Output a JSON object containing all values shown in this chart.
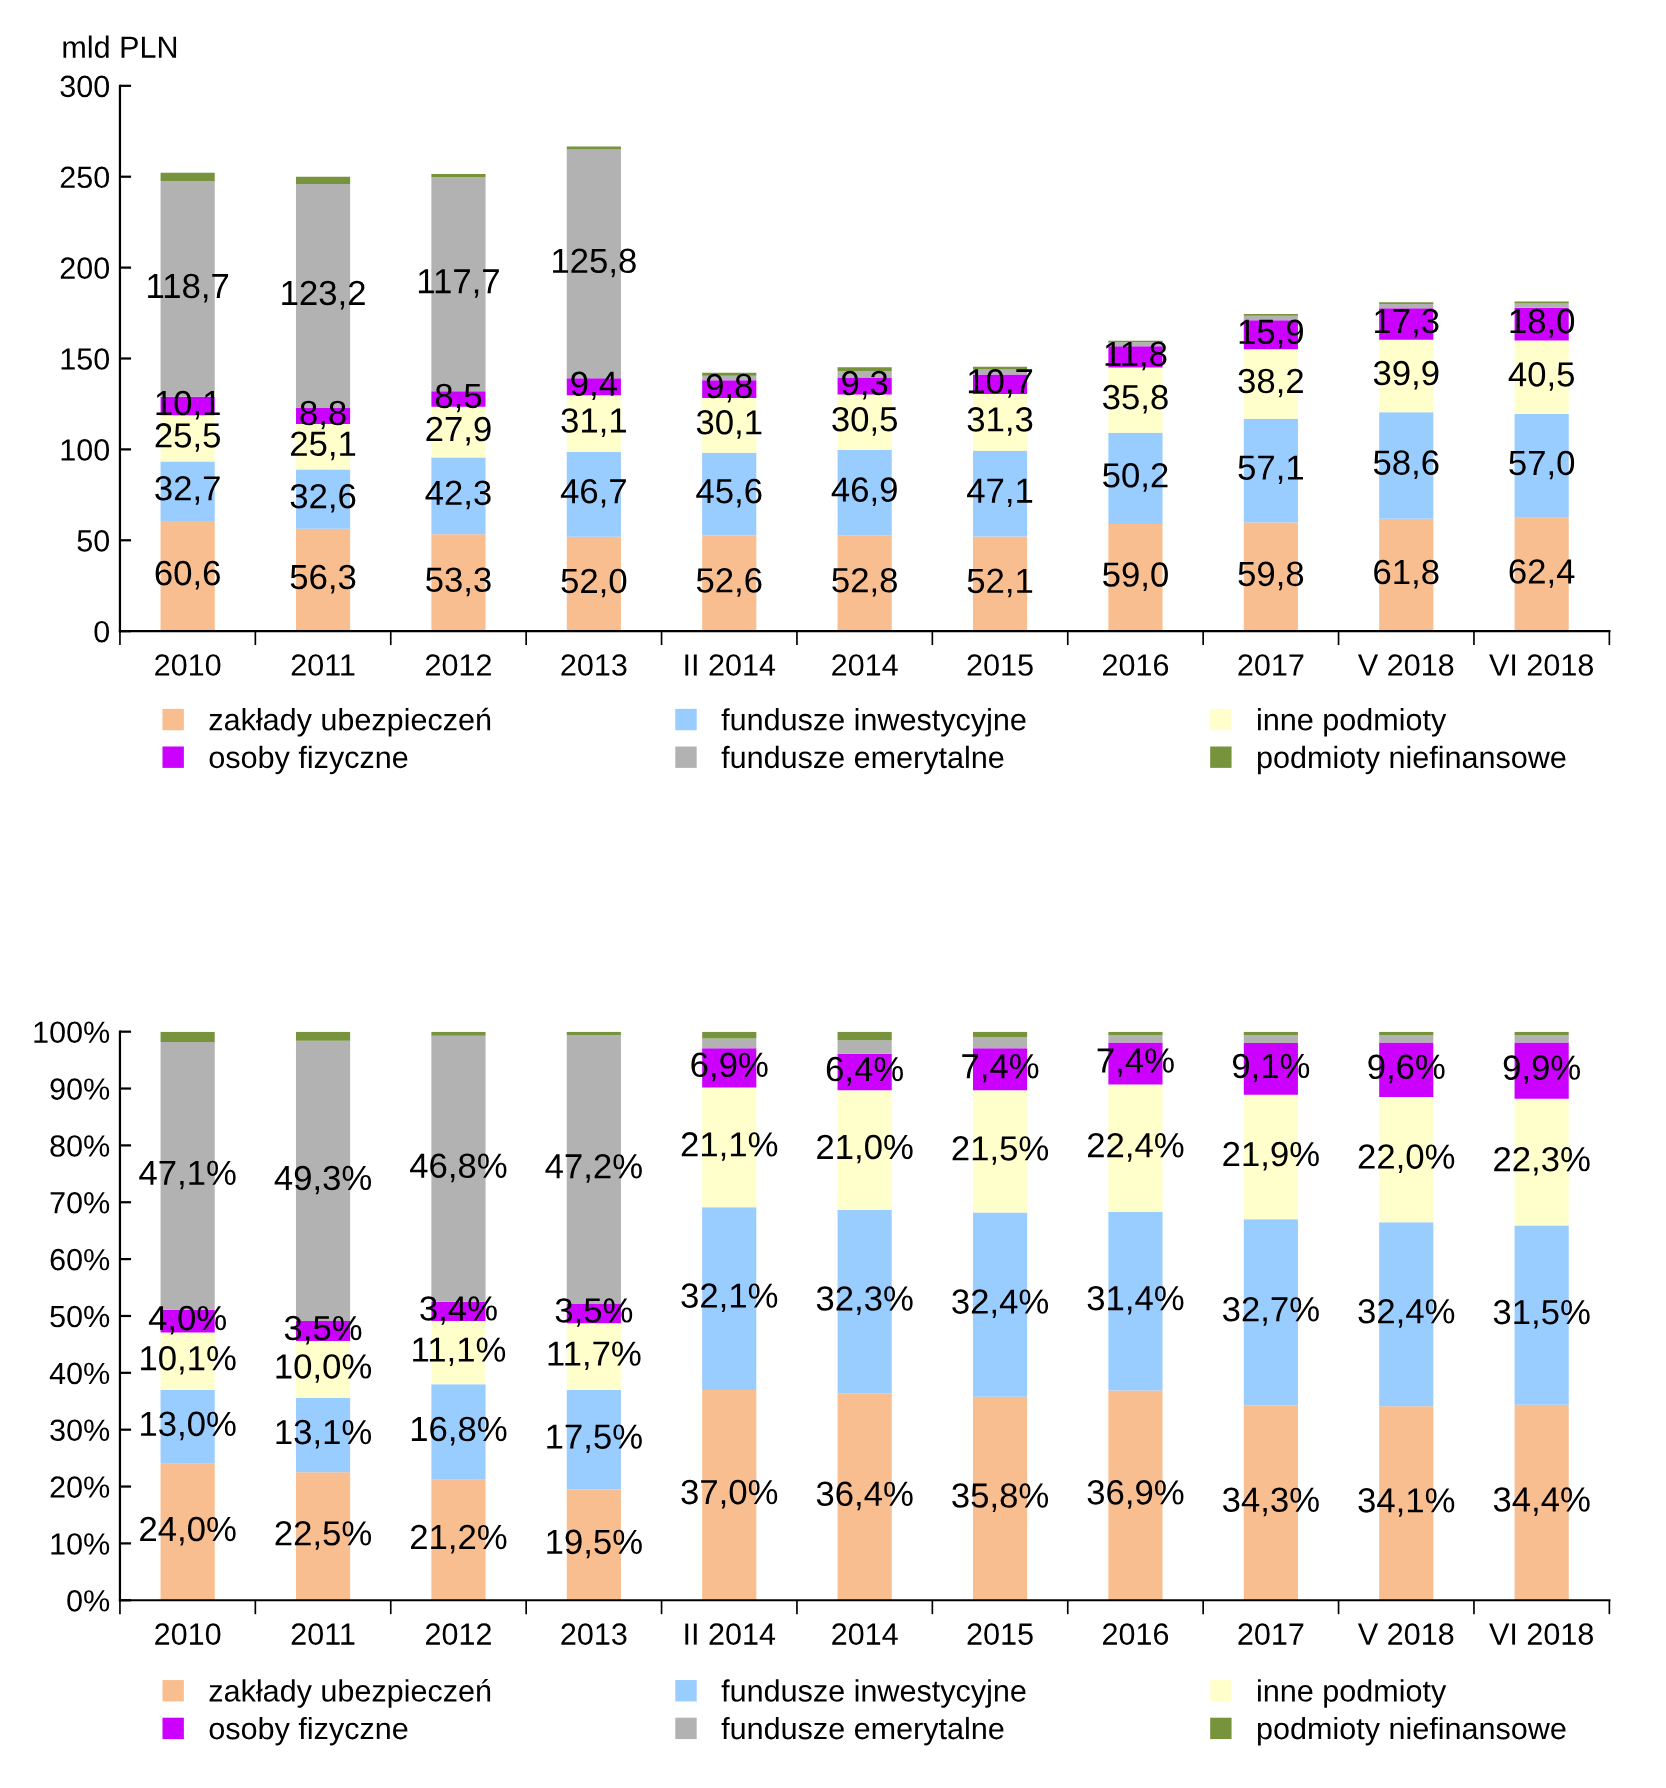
{
  "chart_data": [
    {
      "type": "bar",
      "stacked": true,
      "ylabel": "mld PLN",
      "categories": [
        "2010",
        "2011",
        "2012",
        "2013",
        "II 2014",
        "2014",
        "2015",
        "2016",
        "2017",
        "V 2018",
        "VI 2018"
      ],
      "ylim": [
        0,
        300
      ],
      "yticks": [
        0,
        50,
        100,
        150,
        200,
        250,
        300
      ],
      "legend": "bottom",
      "grid": false,
      "series": [
        {
          "name": "zakłady ubezpieczeń",
          "color": "#f9be8f",
          "values": [
            60.6,
            56.3,
            53.3,
            52.0,
            52.6,
            52.8,
            52.1,
            59.0,
            59.8,
            61.8,
            62.4
          ],
          "value_labels": [
            "60,6",
            "56,3",
            "53,3",
            "52,0",
            "52,6",
            "52,8",
            "52,1",
            "59,0",
            "59,8",
            "61,8",
            "62,4"
          ]
        },
        {
          "name": "fundusze inwestycyjne",
          "color": "#99ccff",
          "values": [
            32.7,
            32.6,
            42.3,
            46.7,
            45.6,
            46.9,
            47.1,
            50.2,
            57.1,
            58.6,
            57.0
          ],
          "value_labels": [
            "32,7",
            "32,6",
            "42,3",
            "46,7",
            "45,6",
            "46,9",
            "47,1",
            "50,2",
            "57,1",
            "58,6",
            "57,0"
          ]
        },
        {
          "name": "inne podmioty",
          "color": "#ffffcc",
          "values": [
            25.5,
            25.1,
            27.9,
            31.1,
            30.1,
            30.5,
            31.3,
            35.8,
            38.2,
            39.9,
            40.5
          ],
          "value_labels": [
            "25,5",
            "25,1",
            "27,9",
            "31,1",
            "30,1",
            "30,5",
            "31,3",
            "35,8",
            "38,2",
            "39,9",
            "40,5"
          ]
        },
        {
          "name": "osoby fizyczne",
          "color": "#cc00ff",
          "values": [
            10.1,
            8.8,
            8.5,
            9.4,
            9.8,
            9.3,
            10.7,
            11.8,
            15.9,
            17.3,
            18.0
          ],
          "value_labels": [
            "10,1",
            "8,8",
            "8,5",
            "9,4",
            "9,8",
            "9,3",
            "10,7",
            "11,8",
            "15,9",
            "17,3",
            "18,0"
          ]
        },
        {
          "name": "fundusze emerytalne",
          "color": "#b2b2b2",
          "values": [
            118.7,
            123.2,
            117.7,
            125.8,
            2.4,
            3.5,
            2.7,
            2.1,
            2.5,
            2.4,
            2.4
          ],
          "value_labels": [
            "118,7",
            "123,2",
            "117,7",
            "125,8",
            null,
            null,
            null,
            null,
            null,
            null,
            null
          ]
        },
        {
          "name": "podmioty niefinansowe",
          "color": "#77933c",
          "values": [
            4.6,
            4.0,
            1.8,
            1.6,
            1.7,
            2.2,
            1.5,
            0.9,
            1.0,
            1.0,
            1.0
          ]
        }
      ]
    },
    {
      "type": "bar",
      "stacked": true,
      "categories": [
        "2010",
        "2011",
        "2012",
        "2013",
        "II 2014",
        "2014",
        "2015",
        "2016",
        "2017",
        "V 2018",
        "VI 2018"
      ],
      "ylim": [
        0,
        100
      ],
      "yticks": [
        {
          "value": 0,
          "label": "0%"
        },
        {
          "value": 10,
          "label": "10%"
        },
        {
          "value": 20,
          "label": "20%"
        },
        {
          "value": 30,
          "label": "30%"
        },
        {
          "value": 40,
          "label": "40%"
        },
        {
          "value": 50,
          "label": "50%"
        },
        {
          "value": 60,
          "label": "60%"
        },
        {
          "value": 70,
          "label": "70%"
        },
        {
          "value": 80,
          "label": "80%"
        },
        {
          "value": 90,
          "label": "90%"
        },
        {
          "value": 100,
          "label": "100%"
        }
      ],
      "legend": "bottom",
      "grid": false,
      "series": [
        {
          "name": "zakłady ubezpieczeń",
          "color": "#f9be8f",
          "values": [
            24.0,
            22.5,
            21.2,
            19.5,
            37.0,
            36.4,
            35.8,
            36.9,
            34.3,
            34.1,
            34.4
          ],
          "value_labels": [
            "24,0%",
            "22,5%",
            "21,2%",
            "19,5%",
            "37,0%",
            "36,4%",
            "35,8%",
            "36,9%",
            "34,3%",
            "34,1%",
            "34,4%"
          ]
        },
        {
          "name": "fundusze inwestycyjne",
          "color": "#99ccff",
          "values": [
            13.0,
            13.1,
            16.8,
            17.5,
            32.1,
            32.3,
            32.4,
            31.4,
            32.7,
            32.4,
            31.5
          ],
          "value_labels": [
            "13,0%",
            "13,1%",
            "16,8%",
            "17,5%",
            "32,1%",
            "32,3%",
            "32,4%",
            "31,4%",
            "32,7%",
            "32,4%",
            "31,5%"
          ]
        },
        {
          "name": "inne podmioty",
          "color": "#ffffcc",
          "values": [
            10.1,
            10.0,
            11.1,
            11.7,
            21.1,
            21.0,
            21.5,
            22.4,
            21.9,
            22.0,
            22.3
          ],
          "value_labels": [
            "10,1%",
            "10,0%",
            "11,1%",
            "11,7%",
            "21,1%",
            "21,0%",
            "21,5%",
            "22,4%",
            "21,9%",
            "22,0%",
            "22,3%"
          ]
        },
        {
          "name": "osoby fizyczne",
          "color": "#cc00ff",
          "values": [
            4.0,
            3.5,
            3.4,
            3.5,
            6.9,
            6.4,
            7.4,
            7.4,
            9.1,
            9.6,
            9.9
          ],
          "value_labels": [
            "4,0%",
            "3,5%",
            "3,4%",
            "3,5%",
            "6,9%",
            "6,4%",
            "7,4%",
            "7,4%",
            "9,1%",
            "9,6%",
            "9,9%"
          ]
        },
        {
          "name": "fundusze emerytalne",
          "color": "#b2b2b2",
          "values": [
            47.1,
            49.3,
            46.8,
            47.2,
            1.7,
            2.4,
            1.9,
            1.3,
            1.4,
            1.3,
            1.3
          ],
          "value_labels": [
            "47,1%",
            "49,3%",
            "46,8%",
            "47,2%",
            null,
            null,
            null,
            null,
            null,
            null,
            null
          ]
        },
        {
          "name": "podmioty niefinansowe",
          "color": "#77933c",
          "values": [
            1.8,
            1.6,
            0.7,
            0.6,
            1.2,
            1.5,
            1.0,
            0.6,
            0.6,
            0.6,
            0.6
          ]
        }
      ]
    }
  ]
}
